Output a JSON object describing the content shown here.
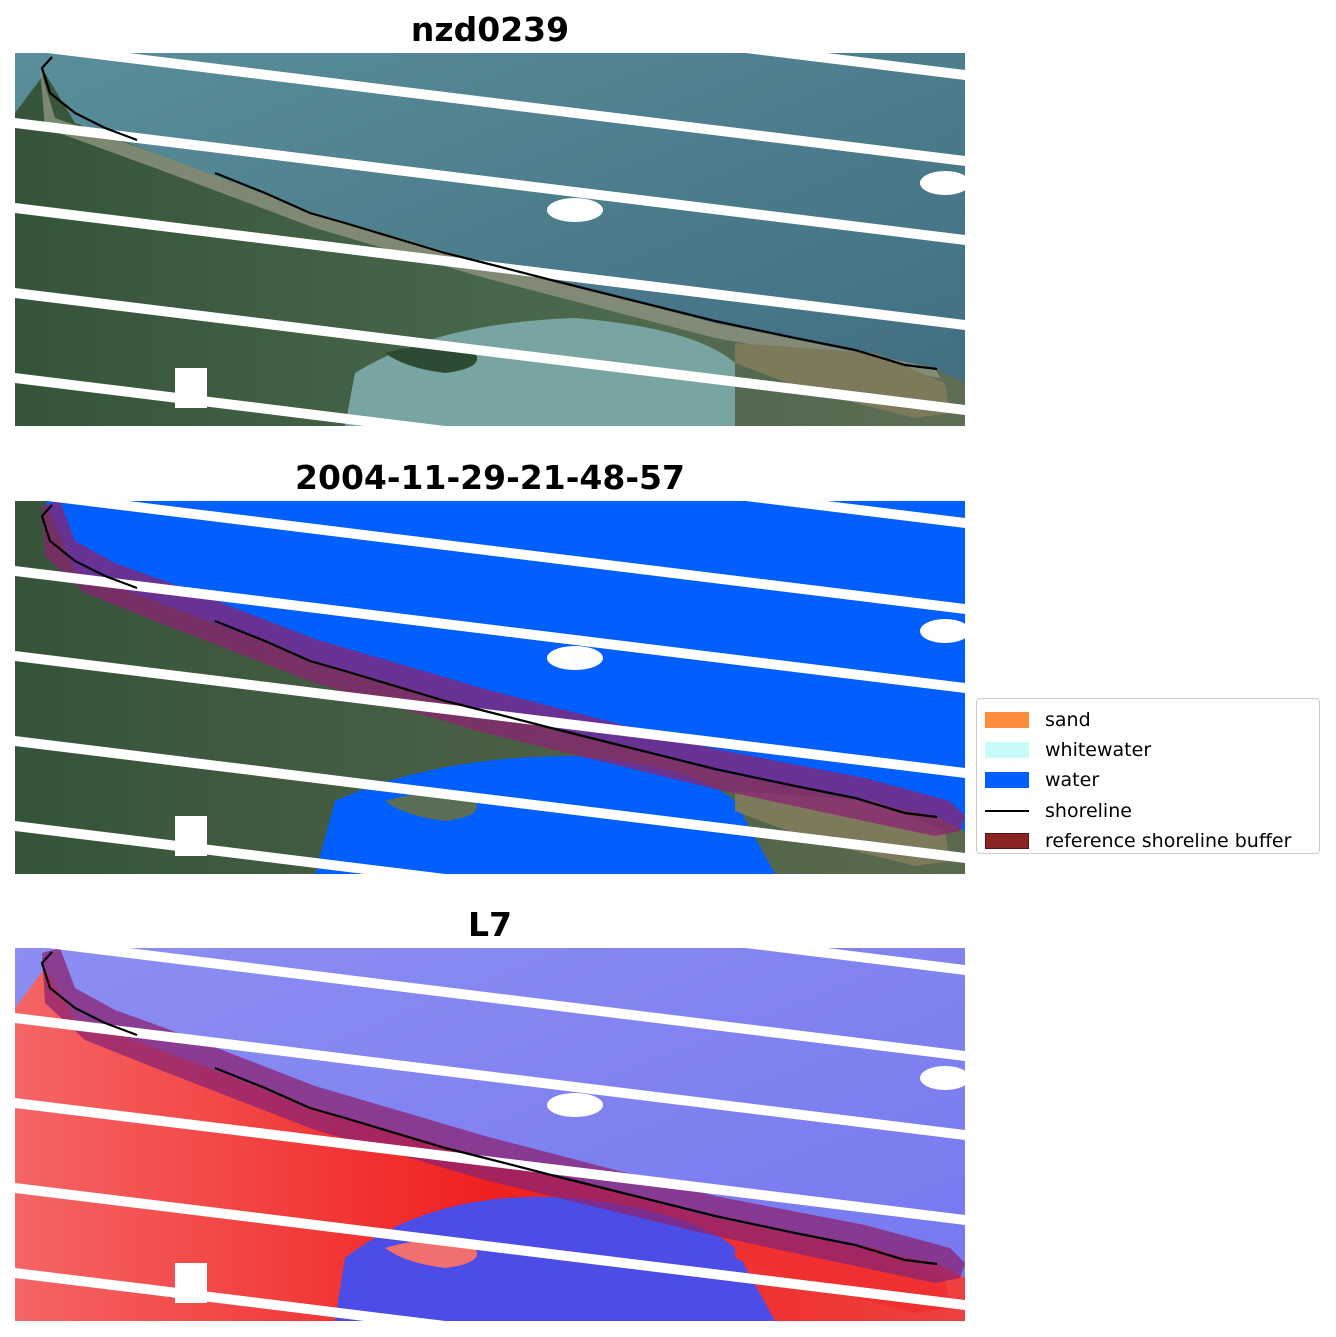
{
  "panels": [
    {
      "title": "nzd0239"
    },
    {
      "title": "2004-11-29-21-48-57"
    },
    {
      "title": "L7"
    }
  ],
  "legend": {
    "items": [
      {
        "label": "sand",
        "kind": "patch",
        "color": "#ff8c3a"
      },
      {
        "label": "whitewater",
        "kind": "patch",
        "color": "#c8fbfb"
      },
      {
        "label": "water",
        "kind": "patch",
        "color": "#005ffd"
      },
      {
        "label": "shoreline",
        "kind": "line",
        "color": "#000000"
      },
      {
        "label": "reference shoreline buffer",
        "kind": "patch",
        "color": "#8b2323"
      }
    ]
  },
  "colors": {
    "water_class": "#005ffd",
    "buffer": "#8b2323",
    "shoreline": "#000000",
    "land_rgb": "#3f5a3f",
    "sea_rgb": "#4d7e8c",
    "mndwi_positive": "#7b7cf2",
    "mndwi_negative": "#f23a3a"
  }
}
